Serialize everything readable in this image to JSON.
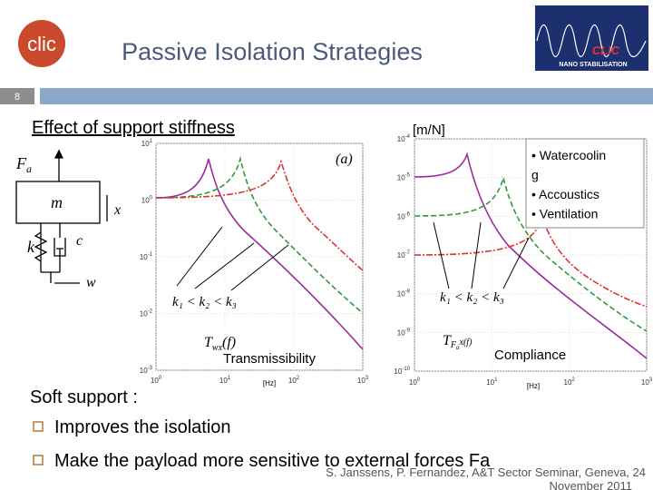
{
  "header": {
    "title": "Passive Isolation Strategies",
    "slide_number": "8",
    "logo_text": "clic",
    "right_logo_text": "CLIC",
    "right_logo_subtext": "NANO STABILISATION"
  },
  "heading": "Effect of support stiffness",
  "figure": {
    "unit_label": "[m/N]",
    "diagram": {
      "force": {
        "main": "F",
        "sub": "a"
      },
      "mass": "m",
      "x": "x",
      "k": "k",
      "c": "c",
      "w": "w"
    },
    "left_plot": {
      "panel": "(a)",
      "yticks": [
        {
          "base": "10",
          "exp": "1"
        },
        {
          "base": "10",
          "exp": "0"
        },
        {
          "base": "10",
          "exp": "-1"
        },
        {
          "base": "10",
          "exp": "-2"
        },
        {
          "base": "10",
          "exp": "-3"
        }
      ],
      "xticks": [
        {
          "base": "10",
          "exp": "0"
        },
        {
          "base": "10",
          "exp": "1"
        },
        {
          "base": "10",
          "exp": "2"
        },
        {
          "base": "10",
          "exp": "3"
        }
      ],
      "x_unit": "[Hz]",
      "stiffness": "k₁ < k₂ < k₃",
      "function": {
        "main": "T",
        "sub": "wx",
        "rest": "(f)"
      },
      "caption": "Transmissibility"
    },
    "right_plot": {
      "yticks": [
        {
          "base": "10",
          "exp": "-4"
        },
        {
          "base": "10",
          "exp": "-5"
        },
        {
          "base": "10",
          "exp": "-6"
        },
        {
          "base": "10",
          "exp": "-7"
        },
        {
          "base": "10",
          "exp": "-8"
        },
        {
          "base": "10",
          "exp": "-9"
        },
        {
          "base": "10",
          "exp": "-10"
        }
      ],
      "xticks": [
        {
          "base": "10",
          "exp": "0"
        },
        {
          "base": "10",
          "exp": "1"
        },
        {
          "base": "10",
          "exp": "2"
        },
        {
          "base": "10",
          "exp": "3"
        }
      ],
      "x_unit": "[Hz]",
      "stiffness": "k₁ < k₂ < k₃",
      "function": {
        "main": "T",
        "sub": "F",
        "subsub": "a",
        "rest": "x(f)"
      },
      "caption": "Compliance",
      "notes": [
        "• Watercoolin",
        "g",
        "• Accoustics",
        "• Ventilation"
      ]
    }
  },
  "body": {
    "intro": "Soft support :",
    "bullets": [
      "Improves the isolation",
      "Make the payload more sensitive to external forces Fa"
    ]
  },
  "footer": {
    "line1": "S. Janssens, P. Fernandez, A&T Sector Seminar, Geneva,  24",
    "line2": "November 2011"
  }
}
